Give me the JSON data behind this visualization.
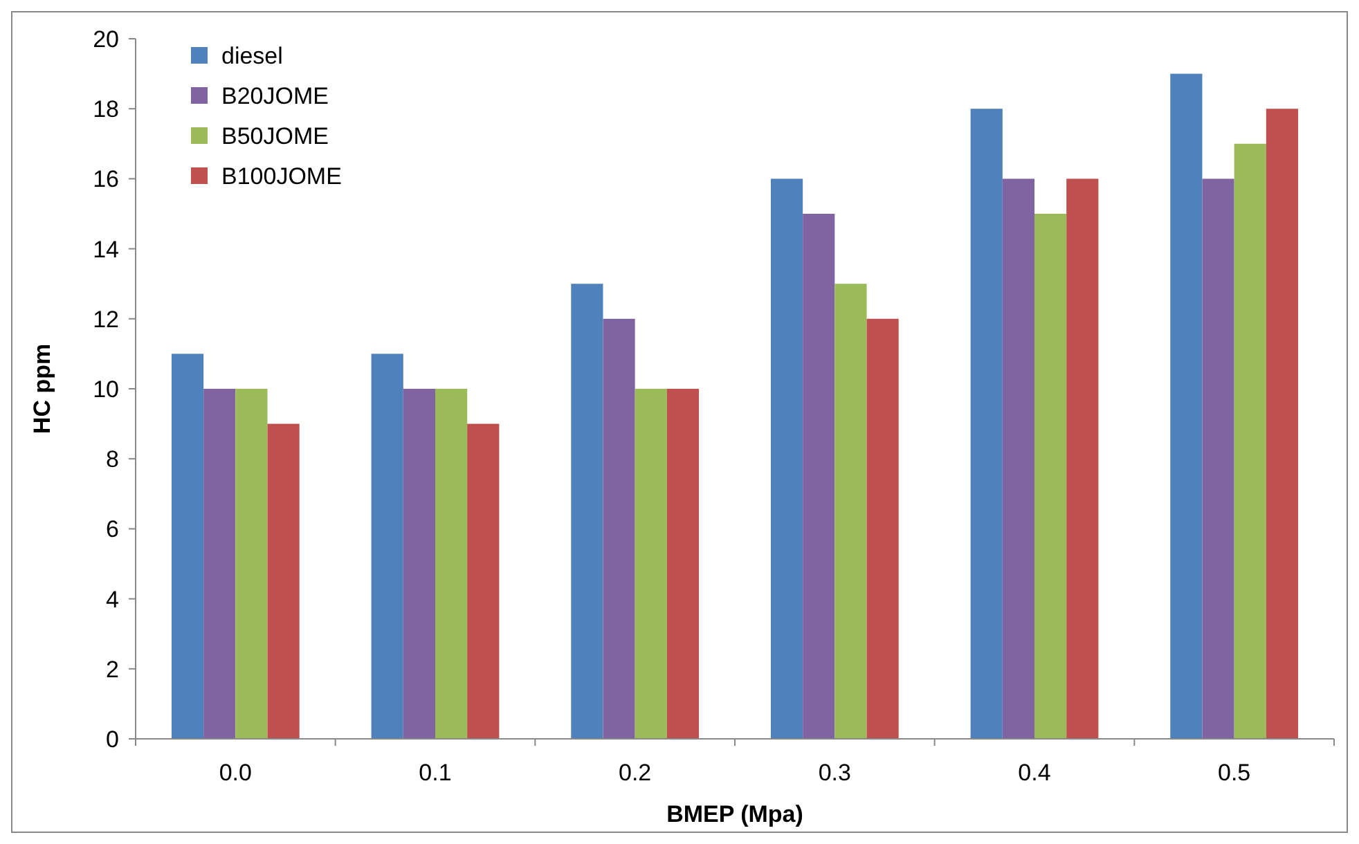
{
  "chart_data": {
    "type": "bar",
    "xlabel": "BMEP (Mpa)",
    "ylabel": "HC ppm",
    "categories": [
      "0.0",
      "0.1",
      "0.2",
      "0.3",
      "0.4",
      "0.5"
    ],
    "series": [
      {
        "name": "diesel",
        "color": "#4f81bd",
        "values": [
          11,
          11,
          13,
          16,
          18,
          19
        ]
      },
      {
        "name": "B20JOME",
        "color": "#8064a2",
        "values": [
          10,
          10,
          12,
          15,
          16,
          16
        ]
      },
      {
        "name": "B50JOME",
        "color": "#9bbb59",
        "values": [
          10,
          10,
          10,
          13,
          15,
          17
        ]
      },
      {
        "name": "B100JOME",
        "color": "#c0504d",
        "values": [
          9,
          9,
          10,
          12,
          16,
          18
        ]
      }
    ],
    "ylim": [
      0,
      20
    ],
    "yticks": [
      0,
      2,
      4,
      6,
      8,
      10,
      12,
      14,
      16,
      18,
      20
    ],
    "grid": false,
    "legend": "top left"
  }
}
